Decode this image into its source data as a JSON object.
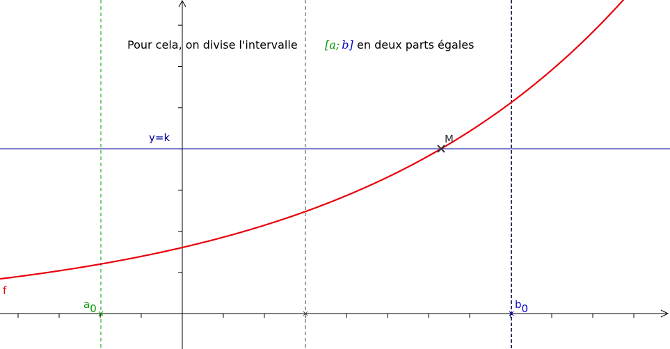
{
  "caption": {
    "before": "Pour cela, on divise l'intervalle",
    "bracket_open": "[",
    "a": "a",
    "sep": ";",
    "b": "b",
    "bracket_close": "]",
    "after": "en deux parts égales"
  },
  "labels": {
    "line": "y=k",
    "point": "M",
    "curve": "f",
    "a_letter": "a",
    "a_sub": "0",
    "b_letter": "b",
    "b_sub": "0"
  },
  "colors": {
    "curve": "#e8000b",
    "horizontal_line": "#000099",
    "a_line": "#009900",
    "b_line": "#0000cc",
    "mid_line": "#444444",
    "axis": "#000000",
    "text": "#000000"
  }
}
